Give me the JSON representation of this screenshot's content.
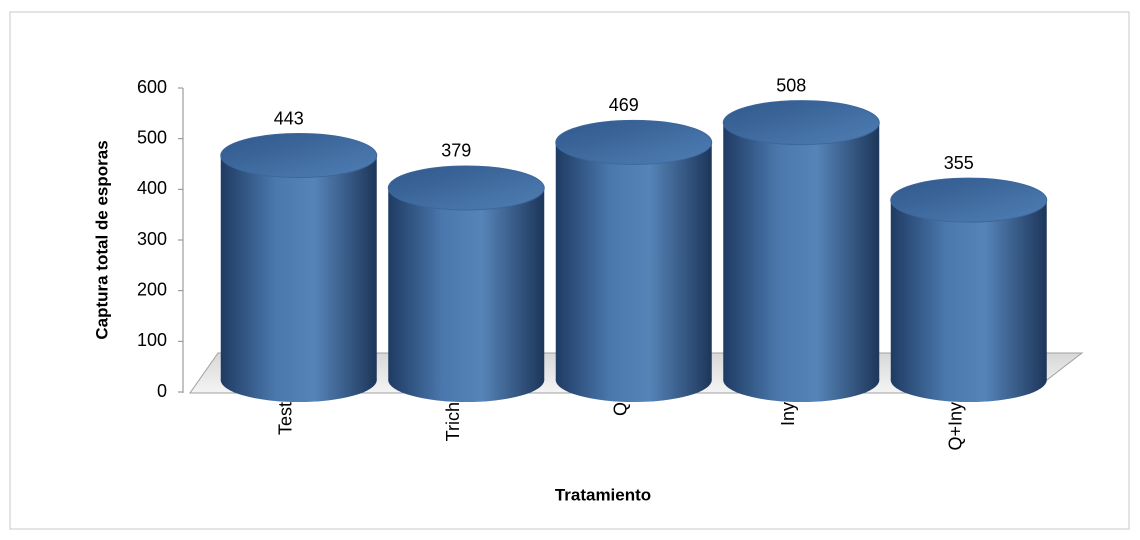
{
  "chart_data": {
    "type": "bar",
    "categories": [
      "Test",
      "Trich",
      "Q",
      "Iny",
      "Q+Iny"
    ],
    "values": [
      443,
      379,
      469,
      508,
      355
    ],
    "color": "#3d679c",
    "ylim": [
      0,
      600
    ],
    "yticks": [
      0,
      100,
      200,
      300,
      400,
      500,
      600
    ],
    "x_label": "Tratamiento",
    "y_label": "Captura total de esporas",
    "grid": false
  }
}
